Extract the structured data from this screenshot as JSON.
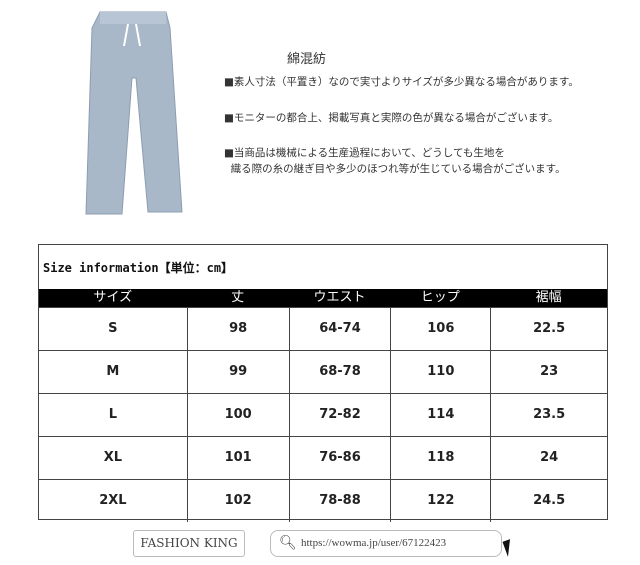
{
  "product": {
    "fabric": "綿混紡",
    "notes": [
      "■素人寸法（平置き）なので実寸よりサイズが多少異なる場合があります。",
      "■モニターの都合上、掲載写真と実際の色が異なる場合がございます。",
      "■当商品は機械による生産過程において、どうしても生地を\n  織る際の糸の継ぎ目や多少のほつれ等が生じている場合がございます。"
    ],
    "jeans_color": "#a9b8c9"
  },
  "size_table": {
    "title": "Size information【単位：cm】",
    "headers": [
      "サイズ",
      "丈",
      "ウエスト",
      "ヒップ",
      "裾幅"
    ],
    "rows": [
      [
        "S",
        "98",
        "64-74",
        "106",
        "22.5"
      ],
      [
        "M",
        "99",
        "68-78",
        "110",
        "23"
      ],
      [
        "L",
        "100",
        "72-82",
        "114",
        "23.5"
      ],
      [
        "XL",
        "101",
        "76-86",
        "118",
        "24"
      ],
      [
        "2XL",
        "102",
        "78-88",
        "122",
        "24.5"
      ]
    ]
  },
  "watermark": {
    "brand": "FASHION KING",
    "url": "https://wowma.jp/user/67122423"
  }
}
